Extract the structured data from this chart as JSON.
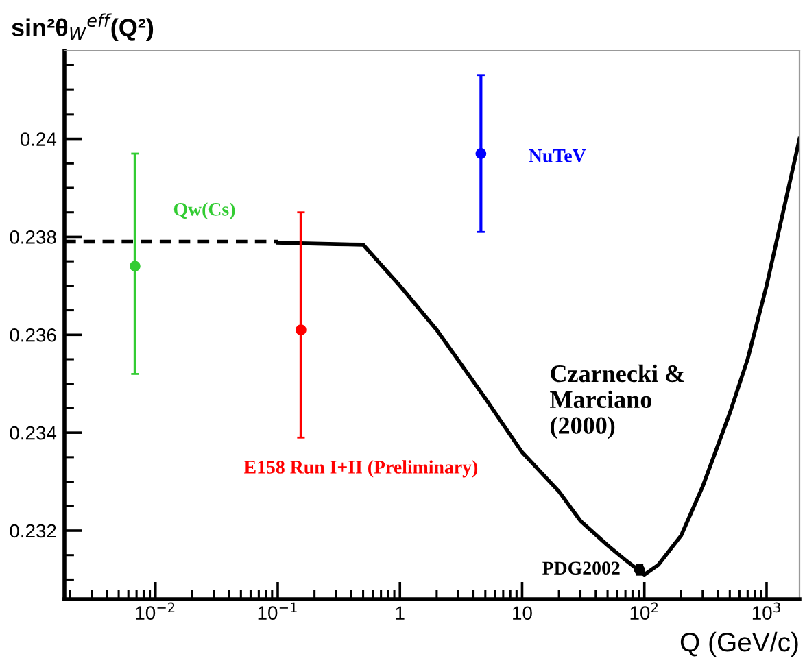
{
  "chart_data": {
    "type": "scatter",
    "title": "sin²θ$_{W}$$^{eff}$(Q²)",
    "xlabel": "Q (GeV/c)",
    "log": "x",
    "xlim": [
      0.0018,
      1860
    ],
    "ylim": [
      0.2306,
      0.2418
    ],
    "xticks": [
      {
        "value": 0.01,
        "label": "10$^{−2}$"
      },
      {
        "value": 0.1,
        "label": "10$^{−1}$"
      },
      1,
      10,
      {
        "value": 100,
        "label": "10$^{2}$"
      },
      {
        "value": 1000,
        "label": "10$^{3}$"
      }
    ],
    "yticks": [
      0.232,
      0.234,
      0.236,
      0.238,
      0.24
    ],
    "grid": false,
    "annotations": [
      "Czarnecki &\nMarciano\n(2000)"
    ],
    "series": [
      {
        "type": "line",
        "line_style": "dashed",
        "color": "#000000",
        "x": [
          0.0018,
          0.1
        ],
        "values": [
          0.2379,
          0.2379
        ]
      },
      {
        "type": "line",
        "line_style": "solid",
        "color": "#000000",
        "x": [
          0.1,
          0.3,
          0.5,
          1,
          2,
          5,
          10,
          20,
          30,
          50,
          70,
          100,
          130,
          200,
          300,
          500,
          700,
          1000,
          1860
        ],
        "values": [
          0.23788,
          0.23785,
          0.23784,
          0.237,
          0.2361,
          0.2347,
          0.2336,
          0.2328,
          0.2322,
          0.2317,
          0.2314,
          0.2311,
          0.2313,
          0.2319,
          0.2329,
          0.2344,
          0.2355,
          0.237,
          0.24
        ]
      },
      {
        "name": "Qw(Cs)",
        "marker": "circle",
        "color": "#33cc33",
        "x": [
          0.0068
        ],
        "values": [
          0.2374
        ],
        "errors": [
          [
            0.2352,
            0.2397
          ]
        ]
      },
      {
        "name": "E158 Run I+II (Preliminary)",
        "marker": "circle",
        "color": "#ff0000",
        "x": [
          0.155
        ],
        "values": [
          0.2361
        ],
        "errors": [
          [
            0.2339,
            0.2385
          ]
        ]
      },
      {
        "name": "NuTeV",
        "marker": "circle",
        "color": "#0000ff",
        "x": [
          4.6
        ],
        "values": [
          0.2397
        ],
        "errors": [
          [
            0.2381,
            0.2413
          ]
        ]
      },
      {
        "name": "PDG2002",
        "marker": "circle",
        "color": "#000000",
        "x": [
          91.2
        ],
        "values": [
          0.2312
        ],
        "errors": [
          [
            0.2311,
            0.2313
          ]
        ]
      }
    ]
  }
}
